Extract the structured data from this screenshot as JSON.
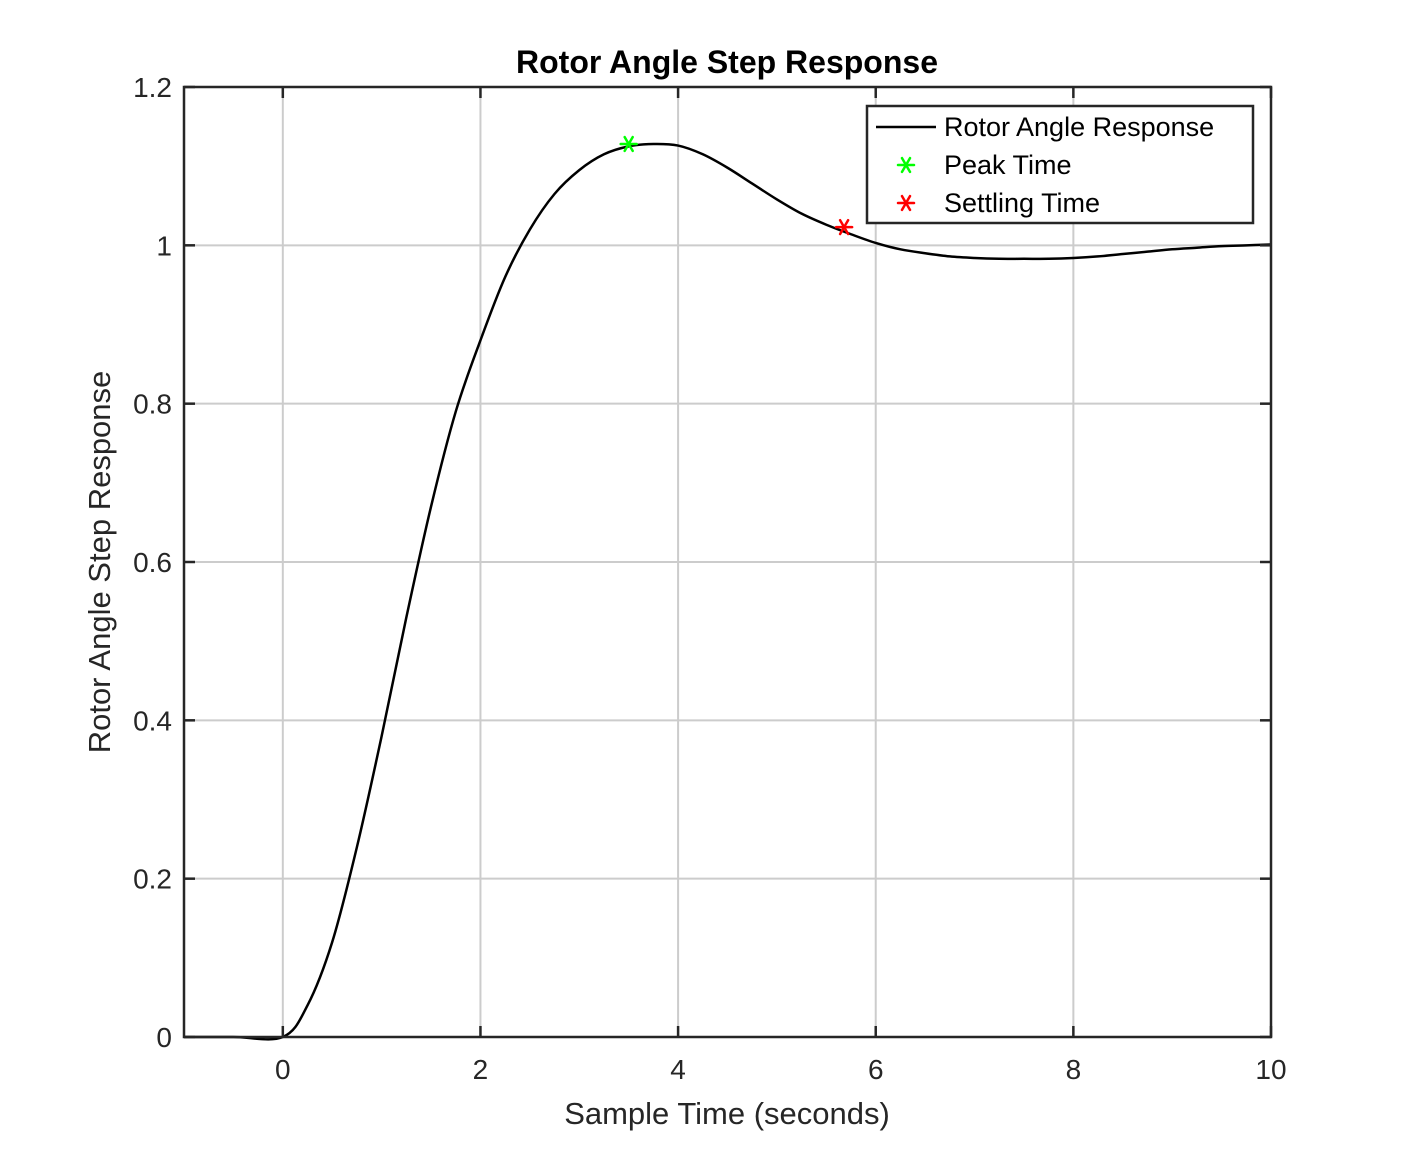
{
  "chart_data": {
    "type": "line",
    "title": "Rotor Angle Step Response",
    "xlabel": "Sample Time (seconds)",
    "ylabel": "Rotor Angle Step Response",
    "xlim": [
      -1,
      10
    ],
    "ylim": [
      0,
      1.2
    ],
    "xticks": [
      0,
      2,
      4,
      6,
      8,
      10
    ],
    "xtick_labels": [
      "0",
      "2",
      "4",
      "6",
      "8",
      "10"
    ],
    "yticks": [
      0,
      0.2,
      0.4,
      0.6,
      0.8,
      1,
      1.2
    ],
    "ytick_labels": [
      "0",
      "0.2",
      "0.4",
      "0.6",
      "0.8",
      "1",
      "1.2"
    ],
    "grid": true,
    "legend_position": "top-right",
    "series": [
      {
        "name": "Rotor Angle Response",
        "color": "#000000",
        "kind": "line",
        "x": [
          -1,
          -0.5,
          0,
          0.25,
          0.5,
          0.75,
          1,
          1.25,
          1.5,
          1.75,
          2,
          2.25,
          2.5,
          2.75,
          3,
          3.25,
          3.5,
          3.75,
          4,
          4.25,
          4.5,
          4.75,
          5,
          5.25,
          5.5,
          5.75,
          6,
          6.25,
          6.5,
          6.75,
          7,
          7.25,
          7.5,
          7.75,
          8,
          8.25,
          8.5,
          8.75,
          9,
          9.25,
          9.5,
          9.75,
          10
        ],
        "y": [
          0,
          0,
          0,
          0.04,
          0.12,
          0.24,
          0.38,
          0.53,
          0.67,
          0.79,
          0.88,
          0.96,
          1.02,
          1.065,
          1.095,
          1.115,
          1.125,
          1.128,
          1.126,
          1.115,
          1.098,
          1.078,
          1.058,
          1.04,
          1.026,
          1.014,
          1.003,
          0.995,
          0.99,
          0.986,
          0.984,
          0.983,
          0.983,
          0.983,
          0.984,
          0.986,
          0.989,
          0.992,
          0.995,
          0.997,
          0.999,
          1.0,
          1.001
        ]
      },
      {
        "name": "Peak Time",
        "color": "#00ff00",
        "kind": "marker",
        "x": [
          3.5
        ],
        "y": [
          1.128
        ]
      },
      {
        "name": "Settling Time",
        "color": "#ff0000",
        "kind": "marker",
        "x": [
          5.68
        ],
        "y": [
          1.023
        ]
      }
    ]
  }
}
